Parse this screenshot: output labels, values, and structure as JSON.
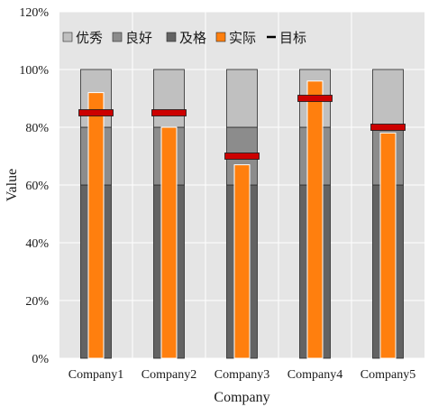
{
  "chart_data": {
    "type": "bar",
    "subtype": "bullet",
    "title": "",
    "xlabel": "Company",
    "ylabel": "Value",
    "ylim": [
      0,
      1.2
    ],
    "yticks": [
      0,
      0.2,
      0.4,
      0.6,
      0.8,
      1.0,
      1.2
    ],
    "ytick_labels": [
      "0%",
      "20%",
      "40%",
      "60%",
      "80%",
      "100%",
      "120%"
    ],
    "categories": [
      "Company1",
      "Company2",
      "Company3",
      "Company4",
      "Company5"
    ],
    "bands": [
      {
        "name": "及格",
        "color": "#636363",
        "values": [
          0.6,
          0.6,
          0.6,
          0.6,
          0.6
        ]
      },
      {
        "name": "良好",
        "color": "#8c8c8c",
        "values": [
          0.8,
          0.8,
          0.8,
          0.8,
          0.8
        ]
      },
      {
        "name": "优秀",
        "color": "#c0c0c0",
        "values": [
          1.0,
          1.0,
          1.0,
          1.0,
          1.0
        ]
      }
    ],
    "series": [
      {
        "name": "实际",
        "color": "#ff7f0e",
        "values": [
          0.92,
          0.8,
          0.67,
          0.96,
          0.78
        ]
      },
      {
        "name": "目标",
        "color": "#cc0000",
        "values": [
          0.85,
          0.85,
          0.7,
          0.9,
          0.8
        ]
      }
    ],
    "legend": {
      "position": "top-left",
      "items": [
        {
          "label": "优秀",
          "color": "#c0c0c0",
          "marker": "square"
        },
        {
          "label": "良好",
          "color": "#8c8c8c",
          "marker": "square"
        },
        {
          "label": "及格",
          "color": "#636363",
          "marker": "square"
        },
        {
          "label": "实际",
          "color": "#ff7f0e",
          "marker": "square"
        },
        {
          "label": "目标",
          "color": "#000000",
          "marker": "line"
        }
      ]
    },
    "plot_background": "#e5e5e5",
    "grid": true,
    "grid_color": "#ffffff"
  }
}
